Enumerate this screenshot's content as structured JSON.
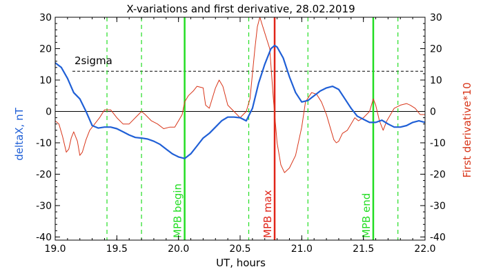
{
  "chart_data": {
    "type": "line",
    "title": "X-variations and first derivative, 28.02.2019",
    "xlabel": "UT, hours",
    "ylabel_left": "deltaX, nT",
    "ylabel_right": "First derivative*10",
    "xlim": [
      19.0,
      22.0
    ],
    "ylim": [
      -41,
      30
    ],
    "x_ticks": [
      19.0,
      19.5,
      20.0,
      20.5,
      21.0,
      21.5,
      22.0
    ],
    "x_tick_labels": [
      "19.0",
      "19.5",
      "20.0",
      "20.5",
      "21.0",
      "21.5",
      "22.0"
    ],
    "y_ticks": [
      30,
      20,
      10,
      0,
      -10,
      -20,
      -30,
      -40
    ],
    "y_tick_labels": [
      "30",
      "20",
      "10",
      "0",
      "-10",
      "-20",
      "-30",
      "-40"
    ],
    "grid": false,
    "colors": {
      "deltaX": "#1f5fd6",
      "derivative": "#d83418",
      "mpb_boundaries": "#22dd22",
      "mpb_max": "#e02418",
      "sigma": "#000000",
      "zero": "#000000"
    },
    "threshold": {
      "label": "2sigma",
      "value": 12.8
    },
    "vertical_markers": [
      {
        "label": "MPB begin",
        "x": 20.05,
        "kind": "solid",
        "color": "#22dd22"
      },
      {
        "label": "MPB max",
        "x": 20.78,
        "kind": "solid",
        "color": "#e02418"
      },
      {
        "label": "MPB end",
        "x": 21.58,
        "kind": "solid",
        "color": "#22dd22"
      }
    ],
    "dashed_markers": [
      {
        "x": 19.42
      },
      {
        "x": 19.7
      },
      {
        "x": 20.57
      },
      {
        "x": 21.05
      },
      {
        "x": 21.78
      }
    ],
    "series": [
      {
        "key": "deltaX",
        "axis": "left",
        "values": [
          [
            19.0,
            15.5
          ],
          [
            19.05,
            14.0
          ],
          [
            19.1,
            10.5
          ],
          [
            19.15,
            6.0
          ],
          [
            19.2,
            4.0
          ],
          [
            19.25,
            0.0
          ],
          [
            19.3,
            -4.5
          ],
          [
            19.35,
            -5.3
          ],
          [
            19.4,
            -5.0
          ],
          [
            19.45,
            -5.0
          ],
          [
            19.5,
            -5.5
          ],
          [
            19.55,
            -6.5
          ],
          [
            19.6,
            -7.5
          ],
          [
            19.65,
            -8.3
          ],
          [
            19.7,
            -8.5
          ],
          [
            19.75,
            -8.8
          ],
          [
            19.8,
            -9.5
          ],
          [
            19.85,
            -10.5
          ],
          [
            19.9,
            -12.0
          ],
          [
            19.95,
            -13.5
          ],
          [
            20.0,
            -14.5
          ],
          [
            20.05,
            -15.0
          ],
          [
            20.1,
            -13.5
          ],
          [
            20.15,
            -11.0
          ],
          [
            20.2,
            -8.5
          ],
          [
            20.25,
            -7.0
          ],
          [
            20.3,
            -5.0
          ],
          [
            20.35,
            -3.0
          ],
          [
            20.4,
            -1.8
          ],
          [
            20.45,
            -1.8
          ],
          [
            20.5,
            -2.0
          ],
          [
            20.55,
            -3.0
          ],
          [
            20.6,
            1.0
          ],
          [
            20.65,
            9.0
          ],
          [
            20.7,
            15.0
          ],
          [
            20.75,
            20.0
          ],
          [
            20.78,
            21.0
          ],
          [
            20.8,
            20.5
          ],
          [
            20.85,
            17.0
          ],
          [
            20.9,
            11.0
          ],
          [
            20.95,
            6.0
          ],
          [
            21.0,
            3.0
          ],
          [
            21.05,
            3.5
          ],
          [
            21.1,
            5.0
          ],
          [
            21.15,
            6.5
          ],
          [
            21.2,
            7.5
          ],
          [
            21.25,
            8.0
          ],
          [
            21.3,
            7.0
          ],
          [
            21.35,
            4.0
          ],
          [
            21.4,
            1.0
          ],
          [
            21.45,
            -1.5
          ],
          [
            21.5,
            -2.5
          ],
          [
            21.55,
            -3.5
          ],
          [
            21.6,
            -3.5
          ],
          [
            21.65,
            -2.8
          ],
          [
            21.7,
            -4.0
          ],
          [
            21.75,
            -5.0
          ],
          [
            21.8,
            -5.0
          ],
          [
            21.85,
            -4.5
          ],
          [
            21.9,
            -3.5
          ],
          [
            21.95,
            -3.0
          ],
          [
            22.0,
            -3.5
          ]
        ]
      },
      {
        "key": "derivative",
        "axis": "right",
        "values": [
          [
            19.0,
            -3.0
          ],
          [
            19.03,
            -4.0
          ],
          [
            19.06,
            -8.0
          ],
          [
            19.09,
            -13.0
          ],
          [
            19.11,
            -12.0
          ],
          [
            19.13,
            -8.5
          ],
          [
            19.15,
            -6.5
          ],
          [
            19.18,
            -9.5
          ],
          [
            19.2,
            -14.0
          ],
          [
            19.22,
            -13.0
          ],
          [
            19.25,
            -9.0
          ],
          [
            19.28,
            -6.0
          ],
          [
            19.32,
            -4.0
          ],
          [
            19.36,
            -2.0
          ],
          [
            19.4,
            0.5
          ],
          [
            19.45,
            0.5
          ],
          [
            19.5,
            -2.0
          ],
          [
            19.55,
            -4.0
          ],
          [
            19.6,
            -4.0
          ],
          [
            19.65,
            -2.0
          ],
          [
            19.7,
            0.0
          ],
          [
            19.73,
            -1.0
          ],
          [
            19.78,
            -3.0
          ],
          [
            19.83,
            -4.0
          ],
          [
            19.88,
            -5.5
          ],
          [
            19.93,
            -5.0
          ],
          [
            19.97,
            -5.0
          ],
          [
            20.0,
            -3.0
          ],
          [
            20.03,
            -1.0
          ],
          [
            20.05,
            3.0
          ],
          [
            20.08,
            5.0
          ],
          [
            20.12,
            6.5
          ],
          [
            20.15,
            8.0
          ],
          [
            20.2,
            7.5
          ],
          [
            20.22,
            2.0
          ],
          [
            20.25,
            1.0
          ],
          [
            20.3,
            7.5
          ],
          [
            20.33,
            10.0
          ],
          [
            20.36,
            8.0
          ],
          [
            20.4,
            2.0
          ],
          [
            20.45,
            0.0
          ],
          [
            20.5,
            -2.0
          ],
          [
            20.55,
            0.0
          ],
          [
            20.58,
            4.0
          ],
          [
            20.62,
            20.0
          ],
          [
            20.64,
            27.0
          ],
          [
            20.66,
            30.0
          ],
          [
            20.7,
            25.0
          ],
          [
            20.74,
            20.0
          ],
          [
            20.77,
            4.0
          ],
          [
            20.8,
            -10.0
          ],
          [
            20.83,
            -17.0
          ],
          [
            20.86,
            -19.5
          ],
          [
            20.9,
            -18.0
          ],
          [
            20.95,
            -14.0
          ],
          [
            21.0,
            -5.0
          ],
          [
            21.03,
            3.0
          ],
          [
            21.08,
            6.0
          ],
          [
            21.12,
            5.5
          ],
          [
            21.16,
            3.0
          ],
          [
            21.2,
            -1.0
          ],
          [
            21.23,
            -5.0
          ],
          [
            21.26,
            -9.0
          ],
          [
            21.28,
            -10.0
          ],
          [
            21.3,
            -9.5
          ],
          [
            21.33,
            -7.0
          ],
          [
            21.37,
            -6.0
          ],
          [
            21.4,
            -4.0
          ],
          [
            21.43,
            -2.0
          ],
          [
            21.46,
            -3.0
          ],
          [
            21.5,
            -2.0
          ],
          [
            21.55,
            0.0
          ],
          [
            21.58,
            4.0
          ],
          [
            21.6,
            2.0
          ],
          [
            21.63,
            -3.0
          ],
          [
            21.66,
            -6.0
          ],
          [
            21.69,
            -3.0
          ],
          [
            21.72,
            -1.0
          ],
          [
            21.75,
            1.0
          ],
          [
            21.8,
            2.0
          ],
          [
            21.85,
            2.5
          ],
          [
            21.88,
            2.0
          ],
          [
            21.92,
            1.0
          ],
          [
            21.96,
            -1.0
          ],
          [
            22.0,
            -1.0
          ]
        ]
      }
    ]
  }
}
